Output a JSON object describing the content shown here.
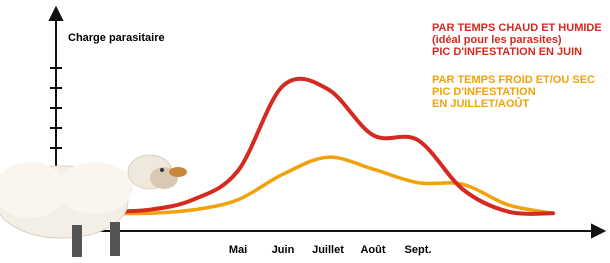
{
  "chart_data": {
    "type": "line",
    "y_label": "Charge parasitaire",
    "categories": [
      null,
      null,
      null,
      "Mai",
      "Juin",
      "Juillet",
      "Août",
      "Sept.",
      null,
      null,
      null
    ],
    "ylim": [
      0,
      100
    ],
    "series": [
      {
        "name": "PAR TEMPS CHAUD ET HUMIDE",
        "color": "#d42a1f",
        "values": [
          2,
          3,
          9,
          26,
          76,
          74,
          47,
          44,
          15,
          2,
          1
        ]
      },
      {
        "name": "PAR TEMPS FROID ET/OU SEC",
        "color": "#f0a20a",
        "values": [
          1,
          1,
          3,
          9,
          24,
          34,
          27,
          19,
          18,
          6,
          1
        ]
      }
    ],
    "annotations": [
      {
        "text": "(idéal pour les parasites)",
        "color": "#d42a1f"
      },
      {
        "text": "PIC D'INFESTATION EN JUIN",
        "color": "#d42a1f"
      },
      {
        "text": "PIC D'INFESTATION",
        "color": "#f0a20a"
      },
      {
        "text": "EN JUILLET/AOÛT",
        "color": "#f0a20a"
      }
    ]
  }
}
